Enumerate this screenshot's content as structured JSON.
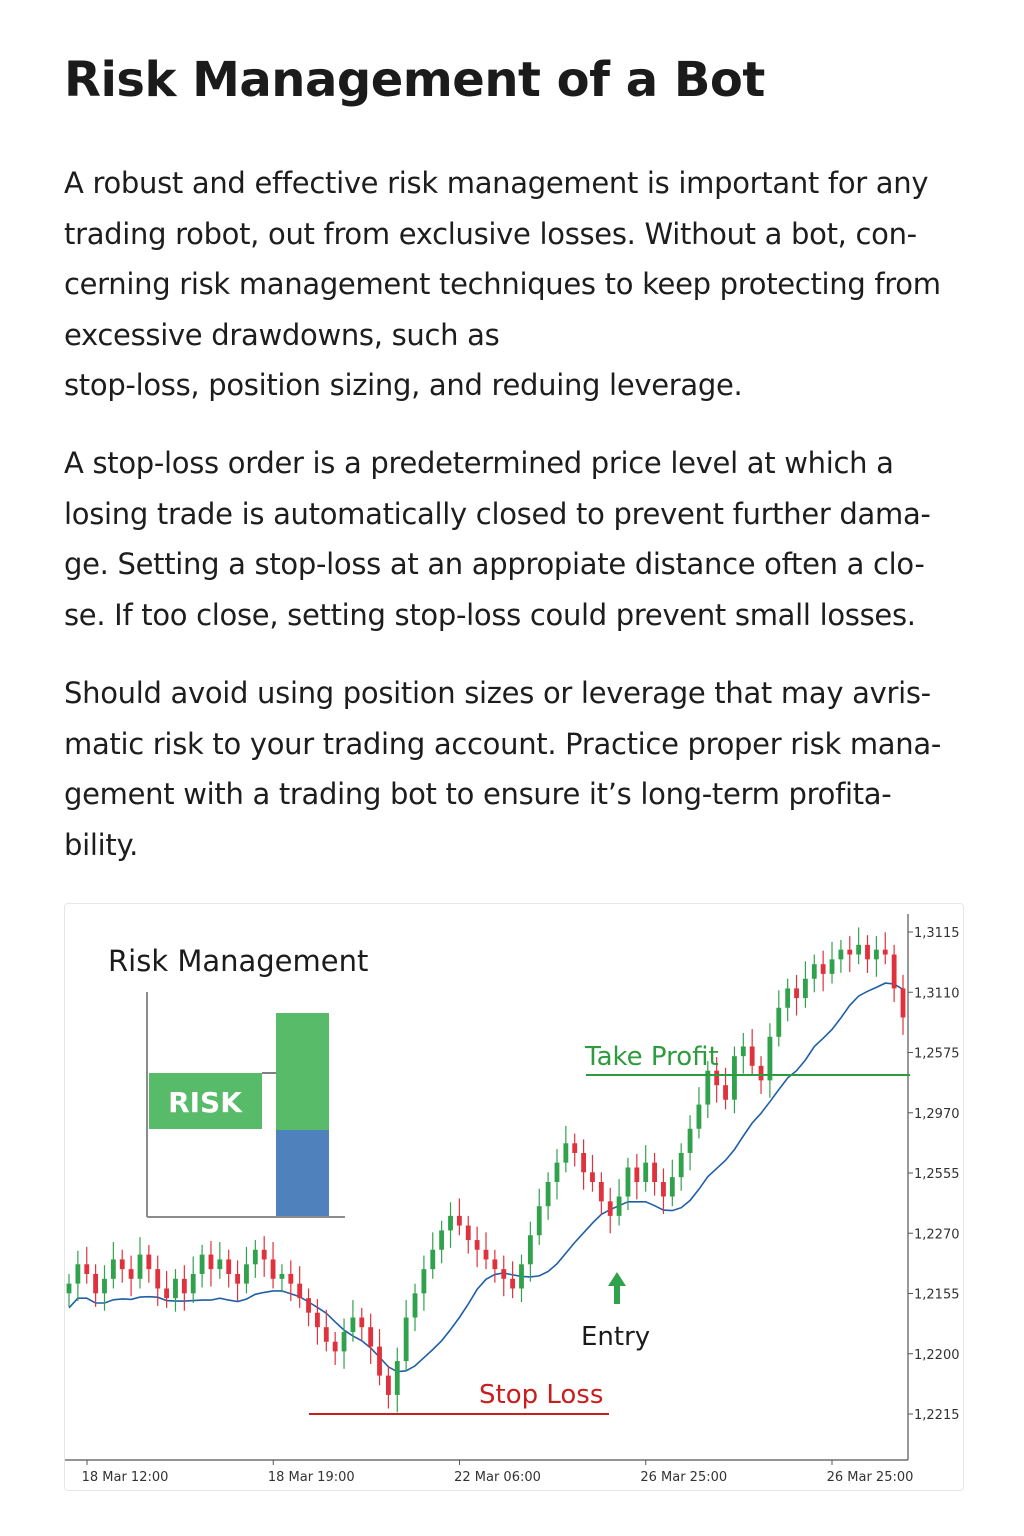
{
  "page": {
    "title": "Risk Management of a Bot",
    "paragraphs": [
      [
        "A robust and effective risk management is important for any",
        "trading robot, out from exclusive losses. Without a bot, con-",
        "cerning risk management techniques to keep protecting from",
        "excessive drawdowns, such as",
        "stop-loss, position sizing, and reduing leverage."
      ],
      [
        "A stop-loss order is a predetermined price level at which a",
        "losing trade is automatically closed to prevent further dama-",
        "ge. Setting a stop-loss at an appropiate  distance often a clo-",
        "se. If too close, setting stop-loss could  prevent small losses."
      ],
      [
        "Should avoid using position sizes or leverage that may avris-",
        "matic risk to your trading account. Practice proper risk mana-",
        "gement with a trading bot to ensure it’s long-term profita-",
        "bility."
      ]
    ]
  },
  "chart_data": {
    "type": "candlestick",
    "title": "Risk Management",
    "inset": {
      "risk_label": "RISK",
      "colors": {
        "reward": "#57bb69",
        "risk": "#4f81bd"
      }
    },
    "y_tick_labels": [
      "1,3115",
      "1,3110",
      "1,2575",
      "1,2970",
      "1,2555",
      "1,2270",
      "1,2155",
      "1,2200",
      "1,2215"
    ],
    "x_tick_labels": [
      "18 Mar 12:00",
      "18 Mar 19:00",
      "22 Mar 06:00",
      "26 Mar 25:00",
      "26 Mar 25:00"
    ],
    "annotations": {
      "take_profit": "Take Profit",
      "stop_loss": "Stop Loss",
      "entry": "Entry"
    },
    "colors": {
      "up": "#31a24c",
      "down": "#e0323c",
      "moving_average": "#1f5fa8",
      "take_profit": "#2e9b3f",
      "stop_loss": "#c81e1e"
    },
    "closes": [
      0.29,
      0.33,
      0.31,
      0.27,
      0.3,
      0.34,
      0.32,
      0.3,
      0.35,
      0.32,
      0.28,
      0.26,
      0.3,
      0.27,
      0.31,
      0.35,
      0.32,
      0.34,
      0.31,
      0.29,
      0.33,
      0.36,
      0.34,
      0.3,
      0.31,
      0.29,
      0.26,
      0.23,
      0.2,
      0.17,
      0.15,
      0.19,
      0.22,
      0.2,
      0.16,
      0.1,
      0.06,
      0.13,
      0.22,
      0.27,
      0.32,
      0.36,
      0.4,
      0.43,
      0.41,
      0.38,
      0.36,
      0.34,
      0.32,
      0.3,
      0.28,
      0.33,
      0.39,
      0.45,
      0.5,
      0.54,
      0.58,
      0.56,
      0.52,
      0.5,
      0.46,
      0.43,
      0.47,
      0.53,
      0.5,
      0.54,
      0.5,
      0.47,
      0.51,
      0.56,
      0.61,
      0.66,
      0.73,
      0.7,
      0.67,
      0.76,
      0.78,
      0.74,
      0.71,
      0.8,
      0.86,
      0.9,
      0.88,
      0.92,
      0.95,
      0.93,
      0.96,
      0.98,
      0.97,
      0.99,
      0.96,
      0.98,
      0.97,
      0.9,
      0.84
    ]
  }
}
